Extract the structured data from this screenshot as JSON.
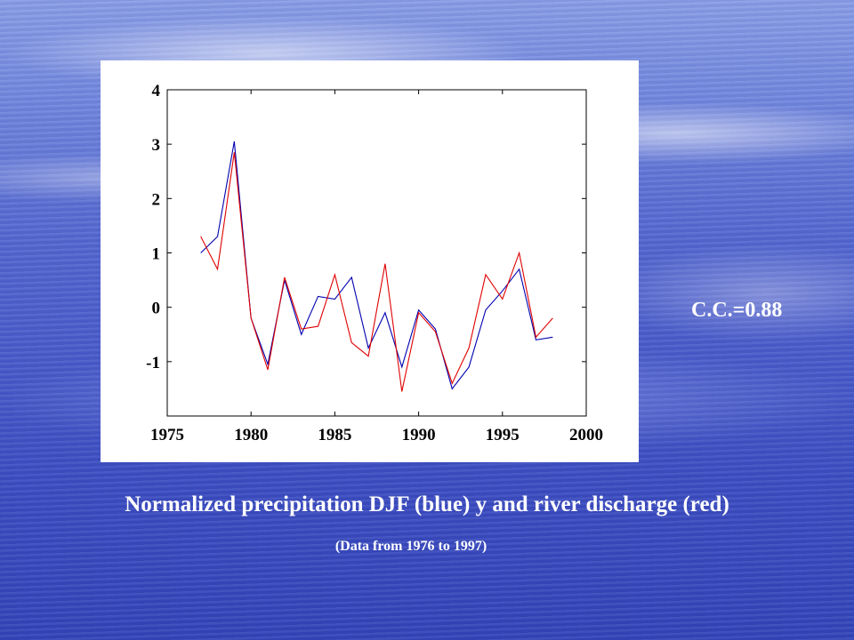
{
  "annotation": {
    "correlation": "C.C.=0.88"
  },
  "caption": {
    "title": "Normalized precipitation DJF (blue) y and river discharge (red)",
    "subtitle": "(Data from 1976 to 1997)"
  },
  "colors": {
    "precipitation": "#0000b0",
    "discharge": "#e00000"
  },
  "chart_data": {
    "type": "line",
    "title": "",
    "xlabel": "",
    "ylabel": "",
    "xlim": [
      1975,
      2000
    ],
    "ylim": [
      -2,
      4
    ],
    "grid": false,
    "x_ticks": [
      1975,
      1980,
      1985,
      1990,
      1995,
      2000
    ],
    "x_tick_labels": [
      "1975",
      "1980",
      "1985",
      "1990",
      "1995",
      "2000"
    ],
    "y_ticks": [
      4,
      3,
      2,
      1,
      0,
      -1
    ],
    "y_tick_labels": [
      "4",
      "3",
      "2",
      "1",
      "0",
      "-1"
    ],
    "x": [
      1977,
      1978,
      1979,
      1980,
      1981,
      1982,
      1983,
      1984,
      1985,
      1986,
      1987,
      1988,
      1989,
      1990,
      1991,
      1992,
      1993,
      1994,
      1995,
      1996,
      1997,
      1998
    ],
    "series": [
      {
        "key": "precipitation",
        "values": [
          1.0,
          1.3,
          3.05,
          -0.2,
          -1.05,
          0.5,
          -0.5,
          0.2,
          0.15,
          0.55,
          -0.75,
          -0.1,
          -1.1,
          -0.05,
          -0.4,
          -1.5,
          -1.1,
          -0.05,
          0.3,
          0.7,
          -0.6,
          -0.55
        ]
      },
      {
        "key": "discharge",
        "values": [
          1.3,
          0.7,
          2.85,
          -0.2,
          -1.15,
          0.55,
          -0.4,
          -0.35,
          0.6,
          -0.65,
          -0.9,
          0.8,
          -1.55,
          -0.1,
          -0.45,
          -1.4,
          -0.75,
          0.6,
          0.15,
          1.0,
          -0.55,
          -0.2
        ]
      }
    ]
  }
}
